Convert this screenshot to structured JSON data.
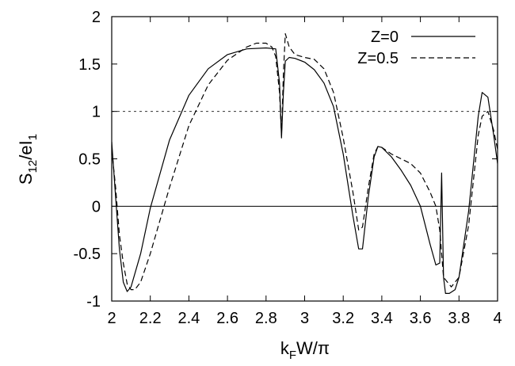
{
  "chart_data": {
    "type": "line",
    "xlabel": "k",
    "xlabel_sub": "F",
    "xlabel_rest": "W/π",
    "ylabel": "S",
    "ylabel_sub": "12",
    "ylabel_mid": "/eI",
    "ylabel_sub2": "1",
    "xlim": [
      2,
      4
    ],
    "ylim": [
      -1,
      2
    ],
    "xticks": [
      "2",
      "2.2",
      "2.4",
      "2.6",
      "2.8",
      "3",
      "3.2",
      "3.4",
      "3.6",
      "3.8",
      "4"
    ],
    "yticks": [
      "-1",
      "-0.5",
      "0",
      "0.5",
      "1",
      "1.5",
      "2"
    ],
    "reference_lines": [
      {
        "y": 0,
        "style": "solid"
      },
      {
        "y": 1,
        "style": "dotted"
      }
    ],
    "legend_position": "top-right",
    "series": [
      {
        "name": "Z=0",
        "style": "solid",
        "x": [
          2.0,
          2.02,
          2.04,
          2.06,
          2.08,
          2.1,
          2.15,
          2.2,
          2.3,
          2.4,
          2.5,
          2.6,
          2.7,
          2.8,
          2.85,
          2.87,
          2.88,
          2.89,
          2.9,
          2.92,
          2.95,
          3.0,
          3.05,
          3.1,
          3.15,
          3.2,
          3.25,
          3.28,
          3.3,
          3.33,
          3.36,
          3.38,
          3.4,
          3.45,
          3.5,
          3.55,
          3.6,
          3.65,
          3.68,
          3.7,
          3.71,
          3.72,
          3.73,
          3.75,
          3.78,
          3.8,
          3.85,
          3.9,
          3.92,
          3.95,
          3.98,
          4.0
        ],
        "y": [
          0.68,
          0.1,
          -0.45,
          -0.8,
          -0.9,
          -0.85,
          -0.5,
          -0.02,
          0.7,
          1.17,
          1.45,
          1.6,
          1.66,
          1.67,
          1.66,
          1.3,
          0.72,
          1.2,
          1.53,
          1.57,
          1.56,
          1.52,
          1.44,
          1.3,
          1.05,
          0.55,
          -0.1,
          -0.45,
          -0.45,
          0.1,
          0.52,
          0.63,
          0.62,
          0.52,
          0.38,
          0.22,
          0.0,
          -0.4,
          -0.62,
          -0.6,
          0.35,
          -0.75,
          -0.92,
          -0.92,
          -0.88,
          -0.75,
          -0.05,
          0.95,
          1.2,
          1.15,
          0.75,
          0.45
        ]
      },
      {
        "name": "Z=0.5",
        "style": "dashed",
        "x": [
          2.0,
          2.02,
          2.04,
          2.06,
          2.08,
          2.1,
          2.12,
          2.15,
          2.2,
          2.3,
          2.4,
          2.5,
          2.6,
          2.7,
          2.75,
          2.8,
          2.83,
          2.85,
          2.87,
          2.88,
          2.89,
          2.9,
          2.92,
          2.95,
          3.0,
          3.05,
          3.1,
          3.15,
          3.2,
          3.25,
          3.28,
          3.3,
          3.33,
          3.36,
          3.38,
          3.4,
          3.45,
          3.5,
          3.55,
          3.6,
          3.65,
          3.68,
          3.7,
          3.72,
          3.74,
          3.76,
          3.8,
          3.85,
          3.9,
          3.92,
          3.95,
          3.98,
          4.0
        ],
        "y": [
          0.6,
          0.2,
          -0.3,
          -0.6,
          -0.82,
          -0.88,
          -0.88,
          -0.8,
          -0.5,
          0.2,
          0.85,
          1.28,
          1.54,
          1.68,
          1.72,
          1.72,
          1.68,
          1.58,
          1.2,
          0.75,
          1.4,
          1.82,
          1.68,
          1.6,
          1.57,
          1.55,
          1.45,
          1.2,
          0.72,
          0.15,
          -0.25,
          -0.22,
          0.2,
          0.55,
          0.63,
          0.62,
          0.55,
          0.5,
          0.45,
          0.35,
          0.15,
          0.0,
          -0.25,
          -0.75,
          -0.8,
          -0.85,
          -0.75,
          -0.2,
          0.75,
          0.95,
          1.0,
          0.8,
          0.6
        ]
      }
    ]
  }
}
